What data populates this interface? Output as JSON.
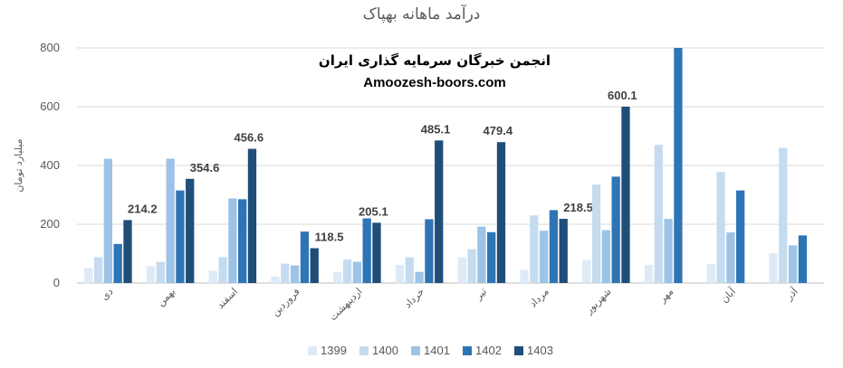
{
  "chart_data": {
    "type": "bar",
    "title": "درآمد ماهانه بهپاک",
    "ylabel": "میلیارد تومان",
    "xlabel": "",
    "ylim": [
      0,
      800
    ],
    "yticks": [
      0,
      200,
      400,
      600,
      800
    ],
    "grid": true,
    "legend": "bottom",
    "categories": [
      "دی",
      "بهمن",
      "اسفند",
      "فروردین",
      "اردیبهشت",
      "خرداد",
      "تیر",
      "مرداد",
      "شهریور",
      "مهر",
      "آبان",
      "آذر"
    ],
    "series": [
      {
        "name": "1399",
        "color": "#deebf7",
        "values": [
          50,
          58,
          42,
          22,
          38,
          62,
          88,
          45,
          78,
          62,
          65,
          102
        ]
      },
      {
        "name": "1400",
        "color": "#c5dcf0",
        "values": [
          88,
          72,
          88,
          66,
          80,
          88,
          115,
          230,
          335,
          470,
          378,
          460
        ]
      },
      {
        "name": "1401",
        "color": "#9dc3e6",
        "values": [
          423,
          423,
          288,
          60,
          72,
          38,
          192,
          178,
          180,
          218,
          172,
          128
        ]
      },
      {
        "name": "1402",
        "color": "#2e75b6",
        "values": [
          133,
          315,
          285,
          175,
          220,
          217,
          173,
          248,
          362,
          800,
          315,
          162
        ]
      },
      {
        "name": "1403",
        "color": "#1f4e79",
        "values": [
          214.2,
          354.6,
          456.6,
          118.5,
          205.1,
          485.1,
          479.4,
          218.5,
          600.1,
          null,
          null,
          null
        ]
      }
    ],
    "data_labels": [
      "214.2",
      "354.6",
      "456.6",
      "118.5",
      "205.1",
      "485.1",
      "479.4",
      "218.5",
      "600.1"
    ]
  },
  "watermark": {
    "line1": "انجمن خبرگان سرمایه گذاری ایران",
    "line2": "Amoozesh-boors.com"
  }
}
